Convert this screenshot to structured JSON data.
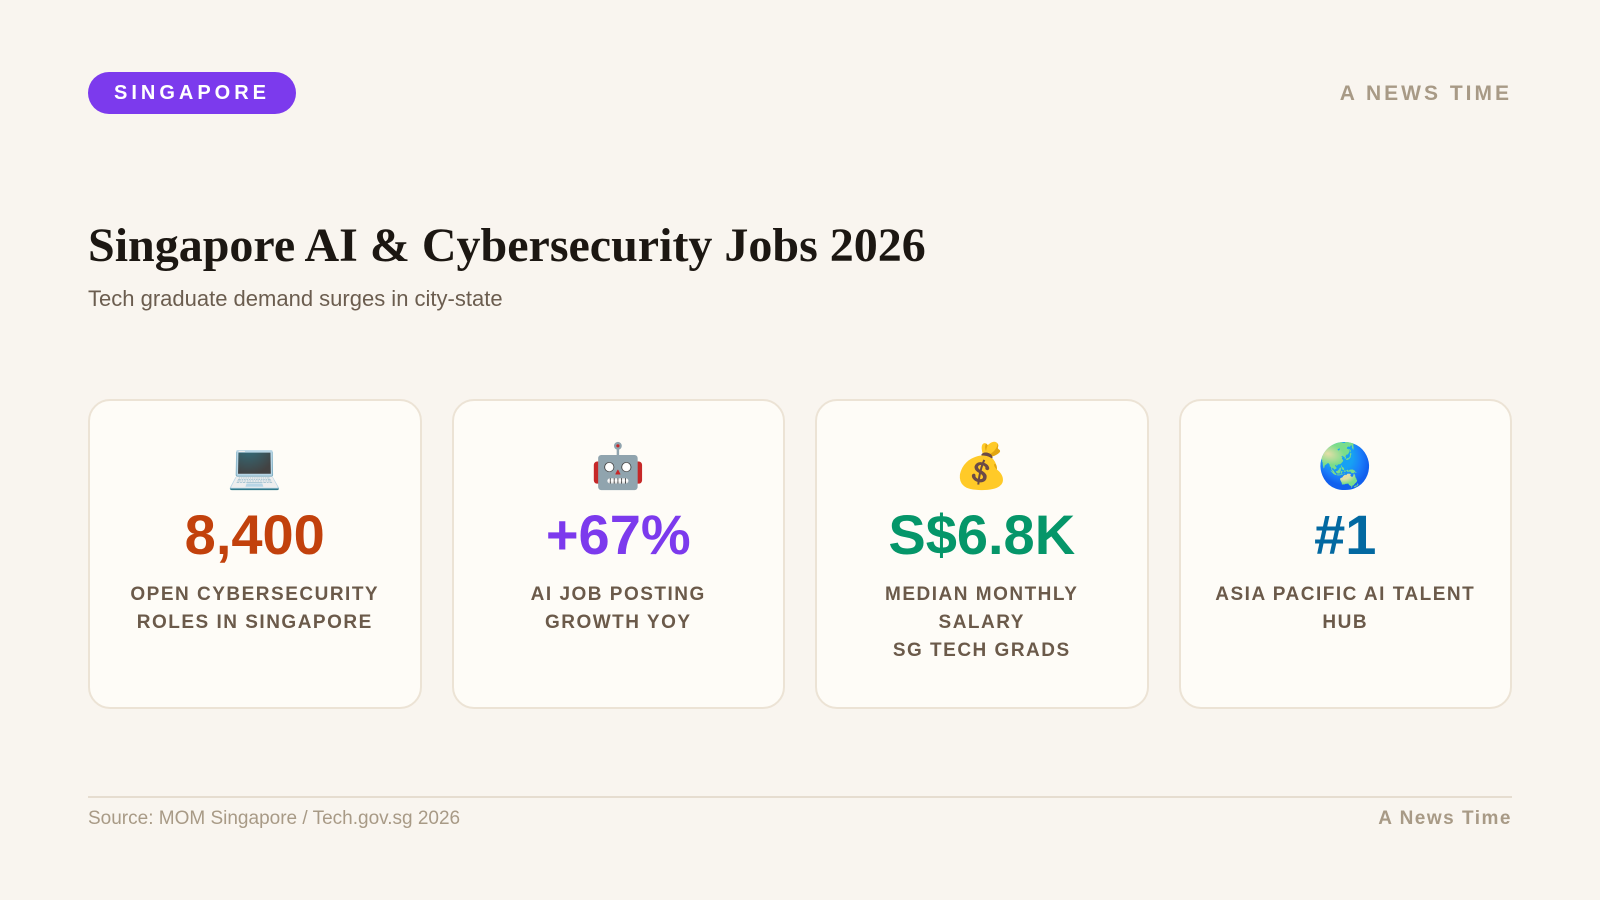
{
  "header": {
    "tag": "SINGAPORE",
    "brand": "A NEWS TIME"
  },
  "title": "Singapore AI & Cybersecurity Jobs 2026",
  "subtitle": "Tech graduate demand surges in city-state",
  "cards": [
    {
      "icon": "💻",
      "value": "8,400",
      "color": "#c2410c",
      "label_lines": [
        "OPEN CYBERSECURITY ROLES IN SINGAPORE"
      ]
    },
    {
      "icon": "🤖",
      "value": "+67%",
      "color": "#7c3aed",
      "label_lines": [
        "AI JOB POSTING GROWTH YOY"
      ]
    },
    {
      "icon": "💰",
      "value": "S$6.8K",
      "color": "#059669",
      "label_lines": [
        "MEDIAN MONTHLY SALARY",
        "SG TECH GRADS"
      ]
    },
    {
      "icon": "🌏",
      "value": "#1",
      "color": "#0369a1",
      "label_lines": [
        "ASIA PACIFIC AI TALENT HUB"
      ]
    }
  ],
  "footer": {
    "source": "Source: MOM Singapore / Tech.gov.sg 2026",
    "brand": "A News Time"
  }
}
